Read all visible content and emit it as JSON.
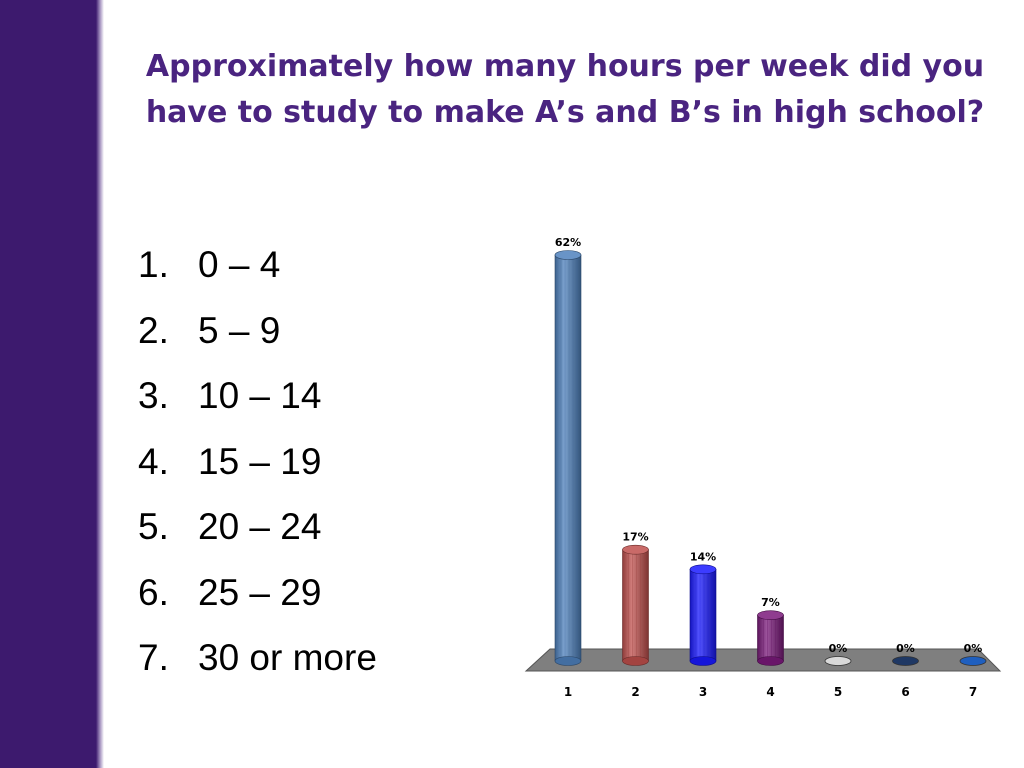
{
  "slide": {
    "title_lines": [
      "Approximately how many hours per week did you",
      "have to study to make A’s and B’s in high school?"
    ],
    "options": [
      {
        "number": "1.",
        "label": "0 – 4"
      },
      {
        "number": "2.",
        "label": "5 – 9"
      },
      {
        "number": "3.",
        "label": "10 – 14"
      },
      {
        "number": "4.",
        "label": "15 – 19"
      },
      {
        "number": "5.",
        "label": "20 – 24"
      },
      {
        "number": "6.",
        "label": "25 – 29"
      },
      {
        "number": "7.",
        "label": "30 or more"
      }
    ]
  },
  "colors": {
    "sidebar": "#3d1a6e",
    "title": "#4a2480"
  },
  "chart_data": {
    "type": "bar",
    "categories": [
      "1",
      "2",
      "3",
      "4",
      "5",
      "6",
      "7"
    ],
    "values": [
      62,
      17,
      14,
      7,
      0,
      0,
      0
    ],
    "data_labels": [
      "62%",
      "17%",
      "14%",
      "7%",
      "0%",
      "0%",
      "0%"
    ],
    "unit": "%",
    "ylim": [
      0,
      62
    ],
    "grid": false,
    "legend": "none",
    "bar_colors": [
      "#4f81bd",
      "#c0504d",
      "#1a1aff",
      "#7b1a7b",
      "#d9d9d9",
      "#1f3864",
      "#1f5fbf"
    ]
  }
}
